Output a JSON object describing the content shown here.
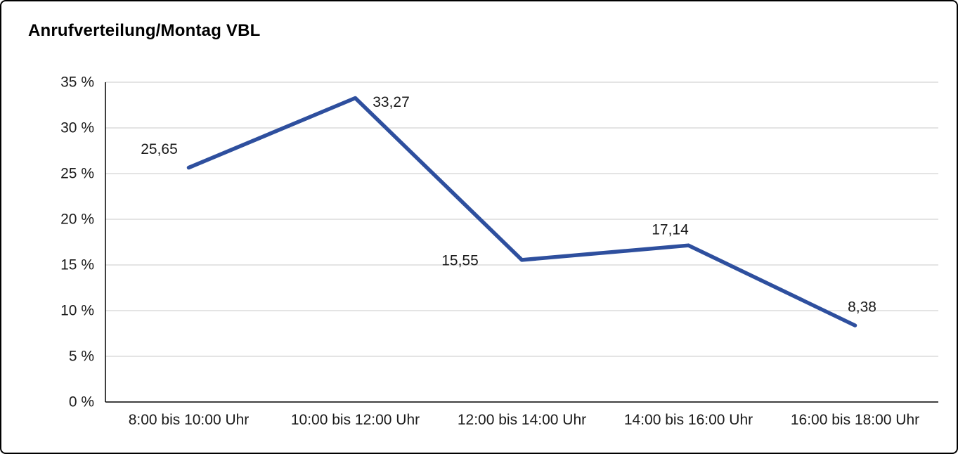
{
  "page": {
    "title": "Anrufverteilung/Montag VBL"
  },
  "chart_data": {
    "type": "line",
    "title": "Anrufverteilung/Montag VBL",
    "categories": [
      "8:00 bis 10:00 Uhr",
      "10:00 bis 12:00 Uhr",
      "12:00 bis 14:00 Uhr",
      "14:00 bis 16:00 Uhr",
      "16:00 bis 18:00 Uhr"
    ],
    "values": [
      25.65,
      33.27,
      15.55,
      17.14,
      8.38
    ],
    "point_labels": [
      "25,65",
      "33,27",
      "15,55",
      "17,14",
      "8,38"
    ],
    "xlabel": "",
    "ylabel": "",
    "ylim": [
      0,
      35
    ],
    "ytick_step": 5,
    "ytick_labels": [
      "0 %",
      "5 %",
      "10 %",
      "15 %",
      "20 %",
      "25 %",
      "30 %",
      "35 %"
    ],
    "grid": true,
    "legend": false,
    "colors": {
      "line": "#2e4f9e",
      "grid": "#c9c9c9",
      "axis": "#000000",
      "text": "#1a1a1a"
    },
    "line_width": 5.5
  }
}
